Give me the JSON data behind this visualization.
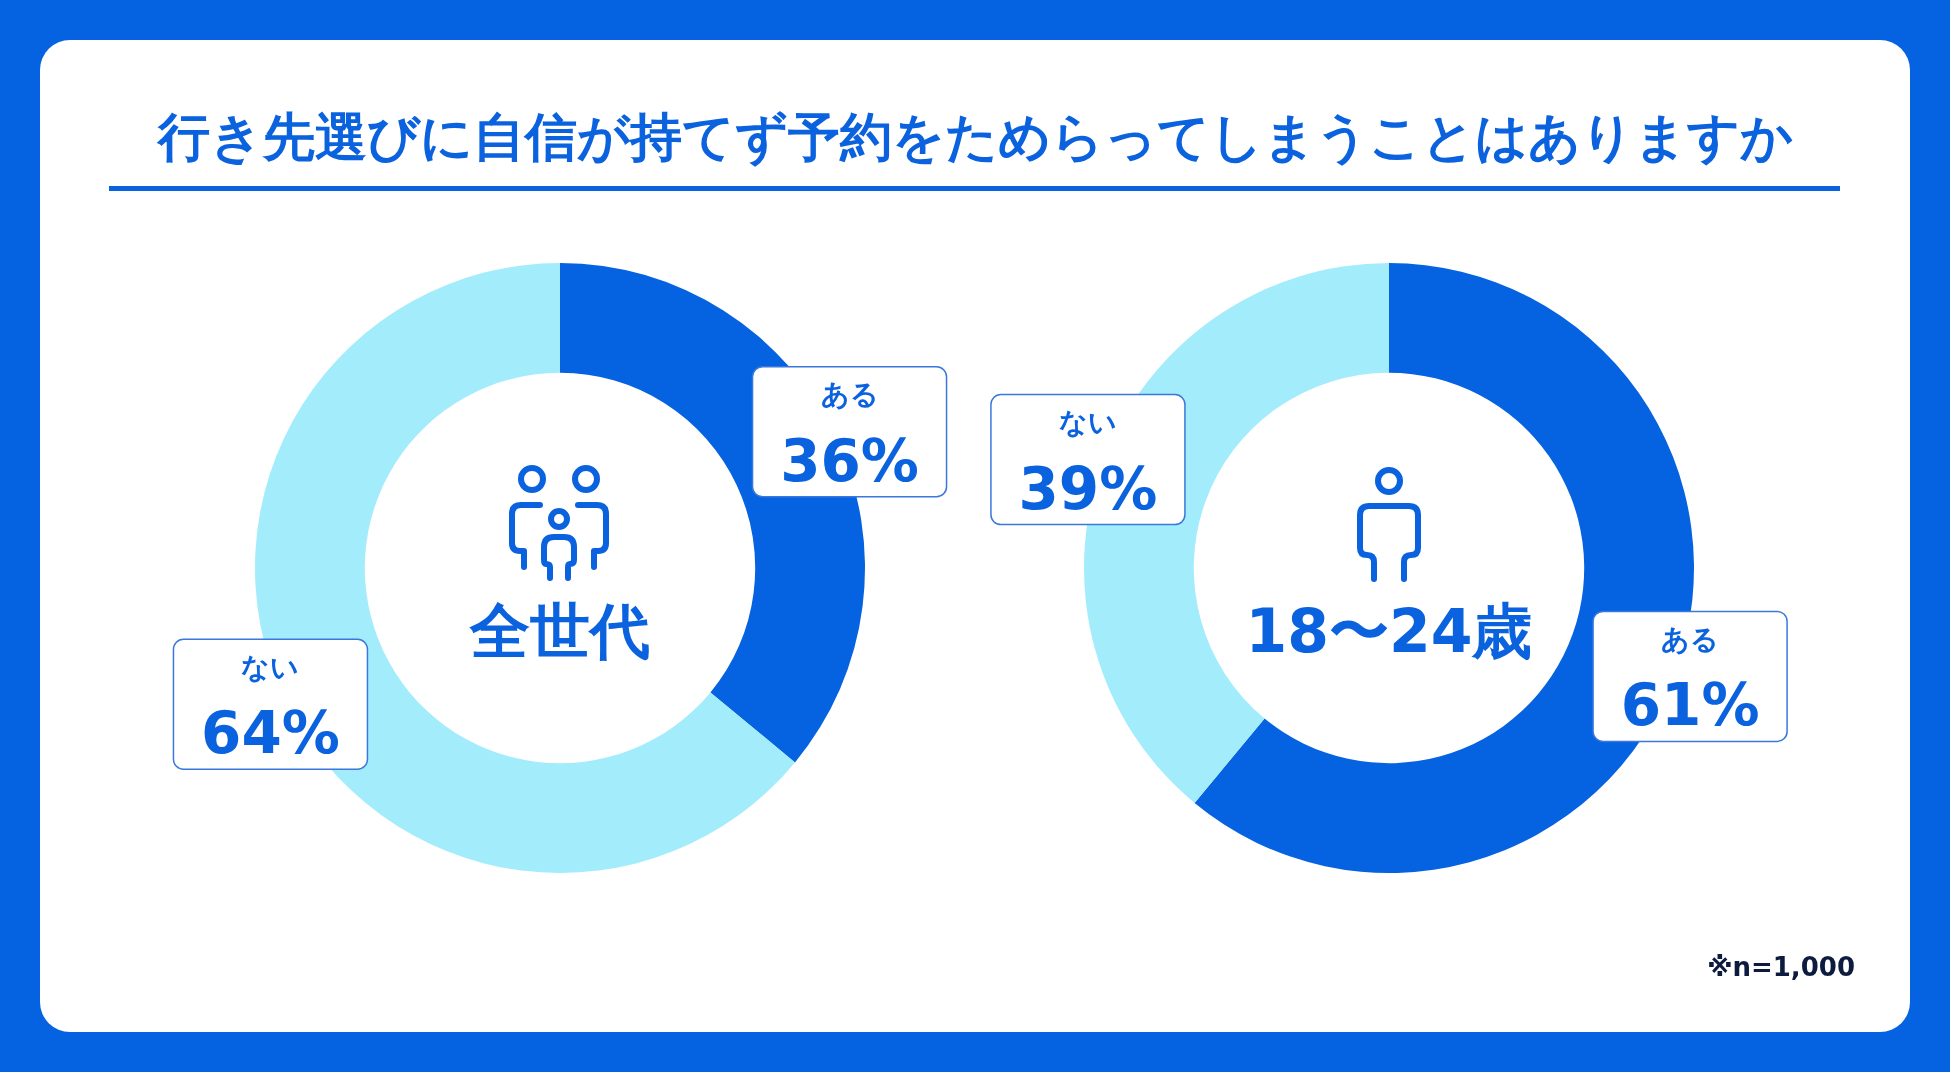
{
  "chart_data": [
    {
      "type": "donut",
      "title": "行き先選びに自信が持てず予約をためらってしまうことはありますか",
      "subtitle": "全世代",
      "categories": [
        "ある",
        "ない"
      ],
      "values": [
        36,
        64
      ],
      "colors": [
        "#0562e1",
        "#a3ecfc"
      ],
      "value_labels": [
        "36%",
        "64%"
      ]
    },
    {
      "type": "donut",
      "subtitle": "18〜24歳",
      "categories": [
        "ある",
        "ない"
      ],
      "values": [
        61,
        39
      ],
      "colors": [
        "#0562e1",
        "#a3ecfc"
      ],
      "value_labels": [
        "61%",
        "39%"
      ],
      "annotations": [
        "※n=1,000"
      ]
    }
  ]
}
